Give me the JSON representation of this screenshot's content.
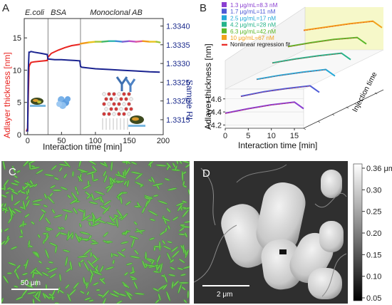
{
  "panels": {
    "A": {
      "label": "A",
      "phases": [
        "E.coli",
        "BSA",
        "Monoclonal AB"
      ],
      "chart_data": {
        "type": "line",
        "xlabel": "Interaction time [min]",
        "ylabel_left": "Adlayer thickness [nm]",
        "ylabel_right": "Sample RI",
        "xlim": [
          -5,
          200
        ],
        "ylim_left": [
          0,
          18
        ],
        "ylim_right": [
          1.3311,
          1.3342
        ],
        "x_ticks": [
          "0",
          "50",
          "100",
          "150",
          "200"
        ],
        "y_left_ticks": [
          "0",
          "5",
          "10",
          "15"
        ],
        "y_right_ticks": [
          "1.3315",
          "1.3320",
          "1.3325",
          "1.3330",
          "1.3335",
          "1.3340"
        ],
        "phase_boundaries": [
          30,
          78
        ],
        "series": [
          {
            "axis": "left",
            "color": "#e8231f",
            "x": [
              -2,
              0,
              1,
              2,
              3,
              4,
              5,
              10,
              20,
              29,
              30,
              35,
              45,
              55,
              65,
              77
            ],
            "y": [
              0.5,
              1,
              6,
              10.5,
              10.8,
              11.0,
              11.2,
              11.3,
              11.4,
              11.5,
              12.0,
              12.6,
              13.1,
              13.5,
              13.8,
              14.0
            ]
          },
          {
            "axis": "left",
            "color": "rainbow",
            "x": [
              78,
              90,
              100,
              110,
              120,
              130,
              140,
              150,
              160,
              170,
              180,
              190,
              195
            ],
            "y": [
              14.1,
              14.3,
              14.4,
              14.4,
              14.5,
              14.5,
              14.4,
              14.5,
              14.4,
              14.5,
              14.4,
              14.4,
              14.3
            ]
          },
          {
            "axis": "right",
            "color": "#1a2390",
            "x": [
              -2,
              0,
              1,
              2,
              3,
              5,
              10,
              20,
              29,
              30,
              40,
              50,
              60,
              70,
              77,
              78,
              80,
              100,
              120,
              140,
              160,
              180,
              195
            ],
            "y": [
              1.3312,
              1.3312,
              1.3328,
              1.3333,
              1.3333,
              1.33332,
              1.3333,
              1.33327,
              1.33324,
              1.33312,
              1.3331,
              1.3331,
              1.33309,
              1.33308,
              1.33307,
              1.33292,
              1.3329,
              1.33286,
              1.33284,
              1.33282,
              1.3328,
              1.33278,
              1.33277
            ]
          }
        ]
      }
    },
    "B": {
      "label": "B",
      "legend": [
        {
          "text": "1.3 μg/mL=8.3 nM",
          "color": "#8a3fd1"
        },
        {
          "text": "1.7 μg/mL=11 nM",
          "color": "#4e5bd6"
        },
        {
          "text": "2.5 μg/mL=17 nM",
          "color": "#23a8d8"
        },
        {
          "text": "4.2 μg/mL=28 nM",
          "color": "#25b38a"
        },
        {
          "text": "6.3 μg/mL=42 nM",
          "color": "#5cb82a"
        },
        {
          "text": "10 μg/mL=67 nM",
          "color": "#f2a21b"
        },
        {
          "text": "Nonlinear regression fit",
          "color": "#e8231f"
        }
      ],
      "chart_data": {
        "type": "line",
        "xlabel": "Interaction time [min]",
        "ylabel": "Adlayer thickness [nm]",
        "zlabel": "Injection time",
        "x_ticks": [
          "0",
          "5",
          "10",
          "15"
        ],
        "y_ticks": [
          "14.2",
          "14.4",
          "14.6"
        ],
        "xlim": [
          0,
          17
        ],
        "ylim": [
          14.15,
          14.75
        ],
        "series": [
          {
            "name": "1.3 μg/mL=8.3 nM",
            "x": [
              0,
              5,
              10,
              15,
              17
            ],
            "y": [
              14.38,
              14.45,
              14.51,
              14.55,
              14.45
            ]
          },
          {
            "name": "1.7 μg/mL=11 nM",
            "x": [
              0,
              5,
              10,
              15,
              17
            ],
            "y": [
              14.4,
              14.47,
              14.52,
              14.56,
              14.46
            ]
          },
          {
            "name": "2.5 μg/mL=17 nM",
            "x": [
              0,
              5,
              10,
              15,
              17
            ],
            "y": [
              14.42,
              14.48,
              14.53,
              14.57,
              14.47
            ]
          },
          {
            "name": "4.2 μg/mL=28 nM",
            "x": [
              0,
              5,
              10,
              15,
              17
            ],
            "y": [
              14.43,
              14.49,
              14.54,
              14.58,
              14.48
            ]
          },
          {
            "name": "6.3 μg/mL=42 nM",
            "x": [
              0,
              5,
              10,
              15,
              17
            ],
            "y": [
              14.44,
              14.5,
              14.55,
              14.58,
              14.48
            ]
          },
          {
            "name": "10 μg/mL=67 nM",
            "x": [
              0,
              5,
              10,
              15,
              17
            ],
            "y": [
              14.45,
              14.5,
              14.55,
              14.59,
              14.49
            ]
          }
        ]
      }
    },
    "C": {
      "label": "C",
      "scalebar": "50 μm"
    },
    "D": {
      "label": "D",
      "scalebar": "2 μm",
      "colorbar_ticks": [
        "0.36 μm",
        "0.30",
        "0.25",
        "0.20",
        "0.15",
        "0.10",
        "0.05"
      ]
    }
  }
}
